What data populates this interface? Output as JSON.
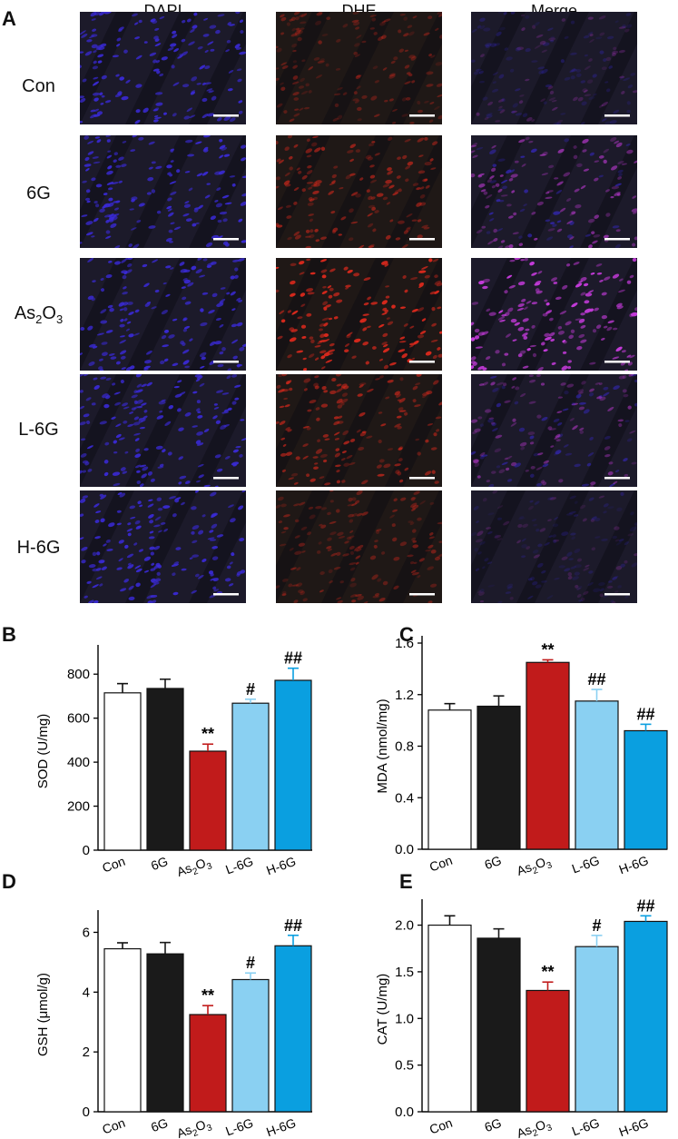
{
  "figure": {
    "panel_a_letter": "A",
    "columns": [
      "DAPI",
      "DHE",
      "Merge"
    ],
    "rows": [
      {
        "label": "Con",
        "sub": "",
        "tail": ""
      },
      {
        "label": "6G",
        "sub": "",
        "tail": ""
      },
      {
        "label": "As",
        "sub": "2",
        "tail": "O",
        "sub2": "3"
      },
      {
        "label": "L-6G",
        "sub": "",
        "tail": ""
      },
      {
        "label": "H-6G",
        "sub": "",
        "tail": ""
      }
    ],
    "image_colors": {
      "background": "#1c1a2a",
      "dapi": "#3a2ad8",
      "dhe": "#d4281c",
      "merge": "#c23ad8"
    },
    "dhe_intensity": [
      0.35,
      0.55,
      0.95,
      0.6,
      0.4
    ],
    "merge_intensity": [
      0.25,
      0.55,
      0.9,
      0.45,
      0.2
    ]
  },
  "chart_data": [
    {
      "panel": "B",
      "type": "bar",
      "categories": [
        "Con",
        "6G",
        "As2O3",
        "L-6G",
        "H-6G"
      ],
      "values": [
        715,
        735,
        450,
        668,
        772
      ],
      "errors": [
        42,
        42,
        32,
        18,
        55
      ],
      "annotations": [
        "",
        "",
        "**",
        "#",
        "##"
      ],
      "ylabel": "SOD (U/mg)",
      "ylim": [
        0,
        900
      ],
      "yticks": [
        "0",
        "200",
        "400",
        "600",
        "800"
      ],
      "ytick_values": [
        0,
        200,
        400,
        600,
        800
      ]
    },
    {
      "panel": "C",
      "type": "bar",
      "categories": [
        "Con",
        "6G",
        "As2O3",
        "L-6G",
        "H-6G"
      ],
      "values": [
        1.08,
        1.11,
        1.45,
        1.15,
        0.92
      ],
      "errors": [
        0.05,
        0.08,
        0.02,
        0.09,
        0.05
      ],
      "annotations": [
        "",
        "",
        "**",
        "##",
        "##"
      ],
      "ylabel": "MDA (nmol/mg)",
      "ylim": [
        0,
        1.6
      ],
      "yticks": [
        "0.0",
        "0.4",
        "0.8",
        "1.2",
        "1.6"
      ],
      "ytick_values": [
        0,
        0.4,
        0.8,
        1.2,
        1.6
      ]
    },
    {
      "panel": "D",
      "type": "bar",
      "categories": [
        "Con",
        "6G",
        "As2O3",
        "L-6G",
        "H-6G"
      ],
      "values": [
        5.45,
        5.28,
        3.25,
        4.42,
        5.55
      ],
      "errors": [
        0.2,
        0.38,
        0.3,
        0.22,
        0.35
      ],
      "annotations": [
        "",
        "",
        "**",
        "#",
        "##"
      ],
      "ylabel": "GSH (μmol/g)",
      "ylim": [
        0,
        6.5
      ],
      "yticks": [
        "0",
        "2",
        "4",
        "6"
      ],
      "ytick_values": [
        0,
        2,
        4,
        6
      ]
    },
    {
      "panel": "E",
      "type": "bar",
      "categories": [
        "Con",
        "6G",
        "As2O3",
        "L-6G",
        "H-6G"
      ],
      "values": [
        2.0,
        1.86,
        1.3,
        1.77,
        2.04
      ],
      "errors": [
        0.1,
        0.1,
        0.09,
        0.12,
        0.06
      ],
      "annotations": [
        "",
        "",
        "**",
        "#",
        "##"
      ],
      "ylabel": "CAT (U/mg)",
      "ylim": [
        0,
        2.2
      ],
      "yticks": [
        "0.0",
        "0.5",
        "1.0",
        "1.5",
        "2.0"
      ],
      "ytick_values": [
        0,
        0.5,
        1.0,
        1.5,
        2.0
      ]
    }
  ],
  "bar_colors": [
    "#ffffff",
    "#1a1a1a",
    "#c11b1b",
    "#8ad0f2",
    "#0a9fe0"
  ]
}
